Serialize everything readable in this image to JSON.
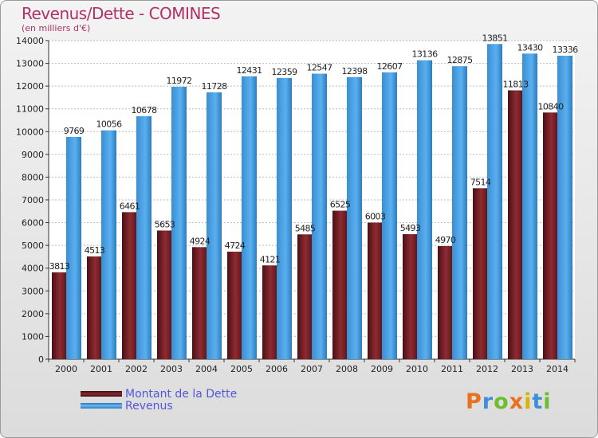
{
  "header": {
    "title": "Revenus/Dette - COMINES",
    "subtitle": "(en milliers d'€)"
  },
  "legend": {
    "debt_label": "Montant de la Dette",
    "revenue_label": "Revenus"
  },
  "logo": {
    "letters": [
      "P",
      "r",
      "o",
      "x",
      "i",
      "t",
      "i"
    ],
    "colors": [
      "#e8701e",
      "#3f8fd8",
      "#6cbe2c",
      "#e8701e",
      "#d6b400",
      "#3f8fd8",
      "#6cbe2c"
    ]
  },
  "colors": {
    "debt": "#7a2228",
    "revenue": "#4ea6e6",
    "title": "#b03068"
  },
  "chart_data": {
    "type": "bar",
    "title": "Revenus/Dette - COMINES",
    "subtitle": "(en milliers d'€)",
    "categories": [
      "2000",
      "2001",
      "2002",
      "2003",
      "2004",
      "2005",
      "2006",
      "2007",
      "2008",
      "2009",
      "2010",
      "2011",
      "2012",
      "2013",
      "2014"
    ],
    "series": [
      {
        "name": "Montant de la Dette",
        "values": [
          3813,
          4513,
          6461,
          5653,
          4924,
          4724,
          4121,
          5485,
          6525,
          6003,
          5493,
          4970,
          7514,
          11813,
          10840
        ],
        "labels": [
          "3813",
          "4513",
          "6461",
          "5653",
          "4924",
          "4724",
          "4121",
          "5485",
          "6525",
          "6003",
          "5493",
          "4970",
          "7514",
          "11813",
          "10840"
        ]
      },
      {
        "name": "Revenus",
        "values": [
          9769,
          10056,
          10678,
          11972,
          11728,
          12431,
          12359,
          12547,
          12398,
          12607,
          13136,
          12875,
          13851,
          13430,
          13336
        ],
        "labels": [
          "9769",
          "10056",
          "10678",
          "11972",
          "11728",
          "12431",
          "12359",
          "12547",
          "12398",
          "12607",
          "13136",
          "12875",
          "13851",
          "13430",
          "13336"
        ]
      }
    ],
    "ylim": [
      0,
      14000
    ],
    "yticks": [
      0,
      1000,
      2000,
      3000,
      4000,
      5000,
      6000,
      7000,
      8000,
      9000,
      10000,
      11000,
      12000,
      13000,
      14000
    ],
    "grid": true,
    "legend_position": "bottom-left"
  }
}
